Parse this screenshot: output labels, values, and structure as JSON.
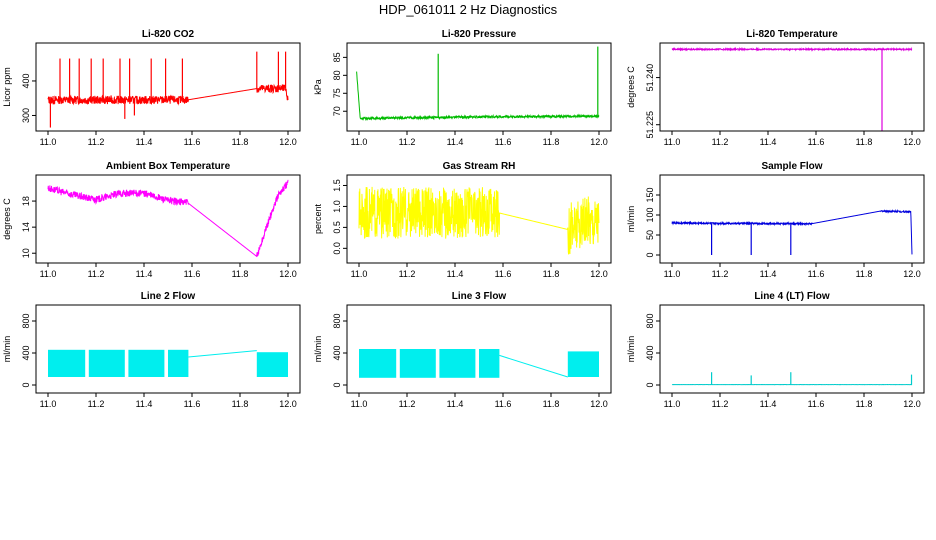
{
  "figure_title": "HDP_061011  2 Hz Diagnostics",
  "chart_data": [
    {
      "type": "line",
      "title": "Li-820 CO2",
      "ylabel": "Licor ppm",
      "xlim": [
        10.95,
        12.05
      ],
      "ylim": [
        255,
        510
      ],
      "xticks": [
        11.0,
        11.2,
        11.4,
        11.6,
        11.8,
        12.0
      ],
      "xtick_labels": [
        "11.0",
        "11.2",
        "11.4",
        "11.6",
        "11.8",
        "12.0"
      ],
      "yticks": [
        300,
        400
      ],
      "ytick_labels": [
        "300",
        "400"
      ],
      "color": "#ff0000",
      "base_line": [
        [
          11.0,
          345
        ],
        [
          11.58,
          345
        ],
        [
          11.87,
          378
        ],
        [
          11.99,
          378
        ],
        [
          12.0,
          345
        ]
      ],
      "noise": 12,
      "spikes": [
        [
          11.01,
          265
        ],
        [
          11.05,
          465
        ],
        [
          11.09,
          465
        ],
        [
          11.13,
          465
        ],
        [
          11.18,
          465
        ],
        [
          11.23,
          465
        ],
        [
          11.3,
          465
        ],
        [
          11.32,
          290
        ],
        [
          11.34,
          465
        ],
        [
          11.36,
          300
        ],
        [
          11.43,
          465
        ],
        [
          11.49,
          465
        ],
        [
          11.56,
          465
        ],
        [
          11.87,
          485
        ],
        [
          11.96,
          485
        ],
        [
          11.99,
          485
        ]
      ],
      "series_label": "CO2"
    },
    {
      "type": "line",
      "title": "Li-820 Pressure",
      "ylabel": "kPa",
      "xlim": [
        10.95,
        12.05
      ],
      "ylim": [
        64.5,
        89
      ],
      "xticks": [
        11.0,
        11.2,
        11.4,
        11.6,
        11.8,
        12.0
      ],
      "xtick_labels": [
        "11.0",
        "11.2",
        "11.4",
        "11.6",
        "11.8",
        "12.0"
      ],
      "yticks": [
        70,
        75,
        80,
        85
      ],
      "ytick_labels": [
        "70",
        "75",
        "80",
        "85"
      ],
      "color": "#00bb00",
      "base_line": [
        [
          10.99,
          81
        ],
        [
          11.005,
          68
        ],
        [
          11.35,
          68.3
        ],
        [
          11.6,
          68.5
        ],
        [
          12.0,
          68.6
        ]
      ],
      "noise": 0.3,
      "spikes": [
        [
          11.33,
          86
        ],
        [
          11.995,
          88
        ]
      ],
      "series_label": "Pressure"
    },
    {
      "type": "line",
      "title": "Li-820 Temperature",
      "ylabel": "degrees C",
      "xlim": [
        10.95,
        12.05
      ],
      "ylim": [
        51.223,
        51.251
      ],
      "xticks": [
        11.0,
        11.2,
        11.4,
        11.6,
        11.8,
        12.0
      ],
      "xtick_labels": [
        "11.0",
        "11.2",
        "11.4",
        "11.6",
        "11.8",
        "12.0"
      ],
      "yticks": [
        51.225,
        51.24
      ],
      "ytick_labels": [
        "51.225",
        "51.240"
      ],
      "color": "#dd00dd",
      "base_line": [
        [
          11.0,
          51.249
        ],
        [
          12.0,
          51.249
        ]
      ],
      "noise": 0.0002,
      "spikes": [
        [
          11.875,
          51.223
        ]
      ],
      "series_label": "Temperature"
    },
    {
      "type": "line",
      "title": "Ambient Box Temperature",
      "ylabel": "degrees C",
      "xlim": [
        10.95,
        12.05
      ],
      "ylim": [
        8.5,
        22
      ],
      "xticks": [
        11.0,
        11.2,
        11.4,
        11.6,
        11.8,
        12.0
      ],
      "xtick_labels": [
        "11.0",
        "11.2",
        "11.4",
        "11.6",
        "11.8",
        "12.0"
      ],
      "yticks": [
        10,
        14,
        18
      ],
      "ytick_labels": [
        "10",
        "14",
        "18"
      ],
      "color": "#ff00ff",
      "base_line": [
        [
          11.0,
          20.0
        ],
        [
          11.1,
          19.0
        ],
        [
          11.2,
          18.2
        ],
        [
          11.3,
          19.2
        ],
        [
          11.4,
          19.2
        ],
        [
          11.5,
          18.1
        ],
        [
          11.58,
          17.8
        ],
        [
          11.87,
          9.5
        ],
        [
          11.92,
          15
        ],
        [
          11.96,
          19
        ],
        [
          12.0,
          20.8
        ]
      ],
      "noise": 0.55,
      "spikes": [],
      "series_label": "Ambient"
    },
    {
      "type": "line",
      "title": "Gas Stream RH",
      "ylabel": "percent",
      "xlim": [
        10.95,
        12.05
      ],
      "ylim": [
        -0.35,
        1.75
      ],
      "xticks": [
        11.0,
        11.2,
        11.4,
        11.6,
        11.8,
        12.0
      ],
      "xtick_labels": [
        "11.0",
        "11.2",
        "11.4",
        "11.6",
        "11.8",
        "12.0"
      ],
      "yticks": [
        0.0,
        0.5,
        1.0,
        1.5
      ],
      "ytick_labels": [
        "0.0",
        "0.5",
        "1.0",
        "1.5"
      ],
      "color": "#ffff00",
      "base_line": [
        [
          11.0,
          0.85
        ],
        [
          11.58,
          0.85
        ],
        [
          11.87,
          0.45
        ],
        [
          12.0,
          0.75
        ]
      ],
      "noise": 0.62,
      "spikes": [],
      "series_label": "RH"
    },
    {
      "type": "line",
      "title": "Sample Flow",
      "ylabel": "ml/min",
      "xlim": [
        10.95,
        12.05
      ],
      "ylim": [
        -20,
        200
      ],
      "xticks": [
        11.0,
        11.2,
        11.4,
        11.6,
        11.8,
        12.0
      ],
      "xtick_labels": [
        "11.0",
        "11.2",
        "11.4",
        "11.6",
        "11.8",
        "12.0"
      ],
      "yticks": [
        0,
        50,
        100,
        150
      ],
      "ytick_labels": [
        "0",
        "50",
        "100",
        "150"
      ],
      "color": "#0000dd",
      "base_line": [
        [
          11.0,
          80
        ],
        [
          11.58,
          78
        ],
        [
          11.87,
          110
        ],
        [
          11.995,
          108
        ],
        [
          12.0,
          0
        ]
      ],
      "noise": 2,
      "spikes": [
        [
          11.165,
          0
        ],
        [
          11.33,
          0
        ],
        [
          11.495,
          0
        ]
      ],
      "series_label": "Sample"
    },
    {
      "type": "area",
      "title": "Line 2 Flow",
      "ylabel": "ml/min",
      "xlim": [
        10.95,
        12.05
      ],
      "ylim": [
        -100,
        1000
      ],
      "xticks": [
        11.0,
        11.2,
        11.4,
        11.6,
        11.8,
        12.0
      ],
      "xtick_labels": [
        "11.0",
        "11.2",
        "11.4",
        "11.6",
        "11.8",
        "12.0"
      ],
      "yticks": [
        0,
        400,
        800
      ],
      "ytick_labels": [
        "0",
        "400",
        "800"
      ],
      "color": "#00eeee",
      "bands": [
        [
          11.0,
          11.155,
          100,
          440
        ],
        [
          11.17,
          11.32,
          100,
          440
        ],
        [
          11.335,
          11.485,
          100,
          440
        ],
        [
          11.5,
          11.585,
          100,
          440
        ],
        [
          11.87,
          12.0,
          100,
          410
        ]
      ],
      "connector": [
        [
          11.585,
          350
        ],
        [
          11.87,
          430
        ]
      ],
      "series_label": "Line2"
    },
    {
      "type": "area",
      "title": "Line 3 Flow",
      "ylabel": "ml/min",
      "xlim": [
        10.95,
        12.05
      ],
      "ylim": [
        -100,
        1000
      ],
      "xticks": [
        11.0,
        11.2,
        11.4,
        11.6,
        11.8,
        12.0
      ],
      "xtick_labels": [
        "11.0",
        "11.2",
        "11.4",
        "11.6",
        "11.8",
        "12.0"
      ],
      "yticks": [
        0,
        400,
        800
      ],
      "ytick_labels": [
        "0",
        "400",
        "800"
      ],
      "color": "#00eeee",
      "bands": [
        [
          11.0,
          11.155,
          90,
          450
        ],
        [
          11.17,
          11.32,
          90,
          450
        ],
        [
          11.335,
          11.485,
          90,
          450
        ],
        [
          11.5,
          11.585,
          90,
          450
        ],
        [
          11.87,
          12.0,
          100,
          420
        ]
      ],
      "connector": [
        [
          11.585,
          370
        ],
        [
          11.87,
          100
        ]
      ],
      "series_label": "Line3"
    },
    {
      "type": "line",
      "title": "Line 4 (LT) Flow",
      "ylabel": "ml/min",
      "xlim": [
        10.95,
        12.05
      ],
      "ylim": [
        -100,
        1000
      ],
      "xticks": [
        11.0,
        11.2,
        11.4,
        11.6,
        11.8,
        12.0
      ],
      "xtick_labels": [
        "11.0",
        "11.2",
        "11.4",
        "11.6",
        "11.8",
        "12.0"
      ],
      "yticks": [
        0,
        400,
        800
      ],
      "ytick_labels": [
        "0",
        "400",
        "800"
      ],
      "color": "#00cccc",
      "base_line": [
        [
          11.0,
          5
        ],
        [
          12.0,
          5
        ]
      ],
      "noise": 1,
      "spikes": [
        [
          11.165,
          160
        ],
        [
          11.33,
          120
        ],
        [
          11.495,
          160
        ],
        [
          11.998,
          130
        ]
      ],
      "series_label": "Line4"
    }
  ]
}
